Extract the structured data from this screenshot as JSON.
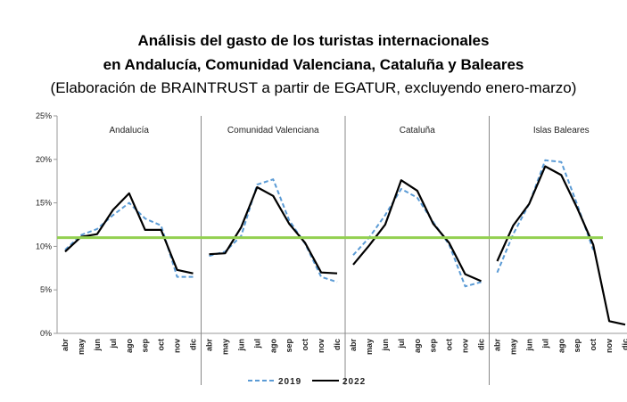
{
  "title_line1": "Análisis del gasto de los turistas internacionales",
  "title_line2": "en Andalucía, Comunidad Valenciana, Cataluña y Baleares",
  "subtitle": "(Elaboración de BRAINTRUST a partir de EGATUR, excluyendo enero-marzo)",
  "chart_data": {
    "type": "line",
    "months": [
      "abr",
      "may",
      "jun",
      "jul",
      "ago",
      "sep",
      "oct",
      "nov",
      "dic"
    ],
    "y_ticks": [
      "0%",
      "5%",
      "10%",
      "15%",
      "20%",
      "25%"
    ],
    "ylim": [
      0,
      25
    ],
    "reference_line": {
      "value": 11,
      "color": "#92D050"
    },
    "legend_position": "bottom",
    "series_styles": [
      {
        "name": "2019",
        "color": "#5B9BD5",
        "dashed": true
      },
      {
        "name": "2022",
        "color": "#000000",
        "dashed": false
      }
    ],
    "panels": [
      {
        "name": "Andalucía",
        "series": [
          {
            "name": "2019",
            "values": [
              9.6,
              11.3,
              12.0,
              13.6,
              15.0,
              13.2,
              12.4,
              6.5,
              6.5
            ]
          },
          {
            "name": "2022",
            "values": [
              9.4,
              11.1,
              11.4,
              14.2,
              16.1,
              11.9,
              11.9,
              7.3,
              6.9
            ]
          }
        ]
      },
      {
        "name": "Comunidad Valenciana",
        "series": [
          {
            "name": "2019",
            "values": [
              8.9,
              9.4,
              11.2,
              17.1,
              17.7,
              13.0,
              10.3,
              6.5,
              5.9
            ]
          },
          {
            "name": "2022",
            "values": [
              9.1,
              9.2,
              12.2,
              16.8,
              15.8,
              12.6,
              10.4,
              7.0,
              6.9
            ]
          }
        ]
      },
      {
        "name": "Cataluña",
        "series": [
          {
            "name": "2019",
            "values": [
              9.0,
              11.0,
              13.6,
              16.6,
              15.6,
              12.8,
              10.2,
              5.4,
              5.9
            ]
          },
          {
            "name": "2022",
            "values": [
              7.9,
              10.1,
              12.5,
              17.6,
              16.4,
              12.6,
              10.4,
              6.8,
              6.0
            ]
          }
        ]
      },
      {
        "name": "Islas Baleares",
        "series": [
          {
            "name": "2019",
            "values": [
              7.0,
              11.4,
              14.9,
              19.9,
              19.7,
              14.8,
              9.6
            ]
          },
          {
            "name": "2022",
            "values": [
              8.3,
              12.4,
              14.9,
              19.2,
              18.2,
              14.4,
              10.2,
              1.4,
              1.0
            ]
          }
        ]
      }
    ]
  }
}
